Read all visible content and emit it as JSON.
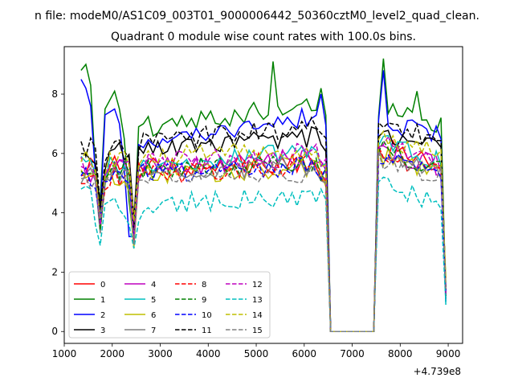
{
  "chart_data": {
    "type": "line",
    "suptitle": "n file: modeM0/AS1C09_003T01_9000006442_50360cztM0_level2_quad_clean.",
    "title": "Quadrant 0 module wise count rates with 100.0s bins.",
    "xlabel": "",
    "ylabel": "",
    "offset_text": "+4.739e8",
    "xlim": [
      1000,
      9300
    ],
    "ylim": [
      -0.4,
      9.6
    ],
    "xticks": [
      1000,
      2000,
      3000,
      4000,
      5000,
      6000,
      7000,
      8000,
      9000
    ],
    "xtick_labels": [
      "1000",
      "2000",
      "3000",
      "4000",
      "5000",
      "6000",
      "7000",
      "8000",
      "9000"
    ],
    "yticks": [
      0,
      2,
      4,
      6,
      8
    ],
    "ytick_labels": [
      "0",
      "2",
      "4",
      "6",
      "8"
    ],
    "grid": false,
    "legend": {
      "placement": "lower-left",
      "columns": 4
    },
    "series": [
      {
        "name": "0",
        "color": "#ff0000",
        "dash": "solid"
      },
      {
        "name": "1",
        "color": "#008000",
        "dash": "solid"
      },
      {
        "name": "2",
        "color": "#0000ff",
        "dash": "solid"
      },
      {
        "name": "3",
        "color": "#000000",
        "dash": "solid"
      },
      {
        "name": "4",
        "color": "#bf00bf",
        "dash": "solid"
      },
      {
        "name": "5",
        "color": "#00bfbf",
        "dash": "solid"
      },
      {
        "name": "6",
        "color": "#bfbf00",
        "dash": "solid"
      },
      {
        "name": "7",
        "color": "#808080",
        "dash": "solid"
      },
      {
        "name": "8",
        "color": "#ff0000",
        "dash": "dashed"
      },
      {
        "name": "9",
        "color": "#008000",
        "dash": "dashed"
      },
      {
        "name": "10",
        "color": "#0000ff",
        "dash": "dashed"
      },
      {
        "name": "11",
        "color": "#000000",
        "dash": "dashed"
      },
      {
        "name": "12",
        "color": "#bf00bf",
        "dash": "dashed"
      },
      {
        "name": "13",
        "color": "#00bfbf",
        "dash": "dashed"
      },
      {
        "name": "14",
        "color": "#bfbf00",
        "dash": "dashed"
      },
      {
        "name": "15",
        "color": "#808080",
        "dash": "dashed"
      }
    ],
    "x_start": 1350,
    "x_step": 100,
    "key_points": [
      {
        "name": "1",
        "x": [
          1350,
          1450,
          1550,
          1650,
          1750,
          1850,
          1950,
          2050,
          2150,
          2250,
          2350,
          2450,
          2550,
          2650,
          5350,
          6350,
          6550,
          7450,
          7650,
          8350,
          8950
        ],
        "y": [
          8.8,
          9.0,
          8.3,
          5.4,
          4.4,
          7.5,
          7.8,
          8.1,
          7.5,
          6.5,
          4.4,
          3.0,
          6.9,
          7.0,
          9.1,
          8.2,
          0.0,
          0.0,
          9.2,
          8.1,
          1.1
        ]
      },
      {
        "name": "2",
        "x": [
          1350,
          1450,
          1550,
          1650,
          1750,
          1850,
          1950,
          2050,
          2150,
          2250,
          2350,
          2450,
          2550,
          6350,
          6550,
          7450,
          7650,
          8350,
          8950
        ],
        "y": [
          8.5,
          8.2,
          7.6,
          5.3,
          3.9,
          7.3,
          7.4,
          7.5,
          7.0,
          5.5,
          3.2,
          3.2,
          6.3,
          8.0,
          0.0,
          0.0,
          8.8,
          7.0,
          1.0
        ]
      },
      {
        "name": "13",
        "x": [
          1350,
          1450,
          1550,
          1650,
          1750,
          1850,
          1950,
          2050,
          2150,
          2250,
          2350,
          2450,
          2550,
          4550,
          6350,
          6550,
          7450,
          7650,
          8350,
          8950
        ],
        "y": [
          4.8,
          4.9,
          4.8,
          3.6,
          2.9,
          4.3,
          4.4,
          4.5,
          4.1,
          3.9,
          3.6,
          2.8,
          3.7,
          4.2,
          4.8,
          0.0,
          0.0,
          5.2,
          4.5,
          1.0
        ]
      }
    ]
  }
}
